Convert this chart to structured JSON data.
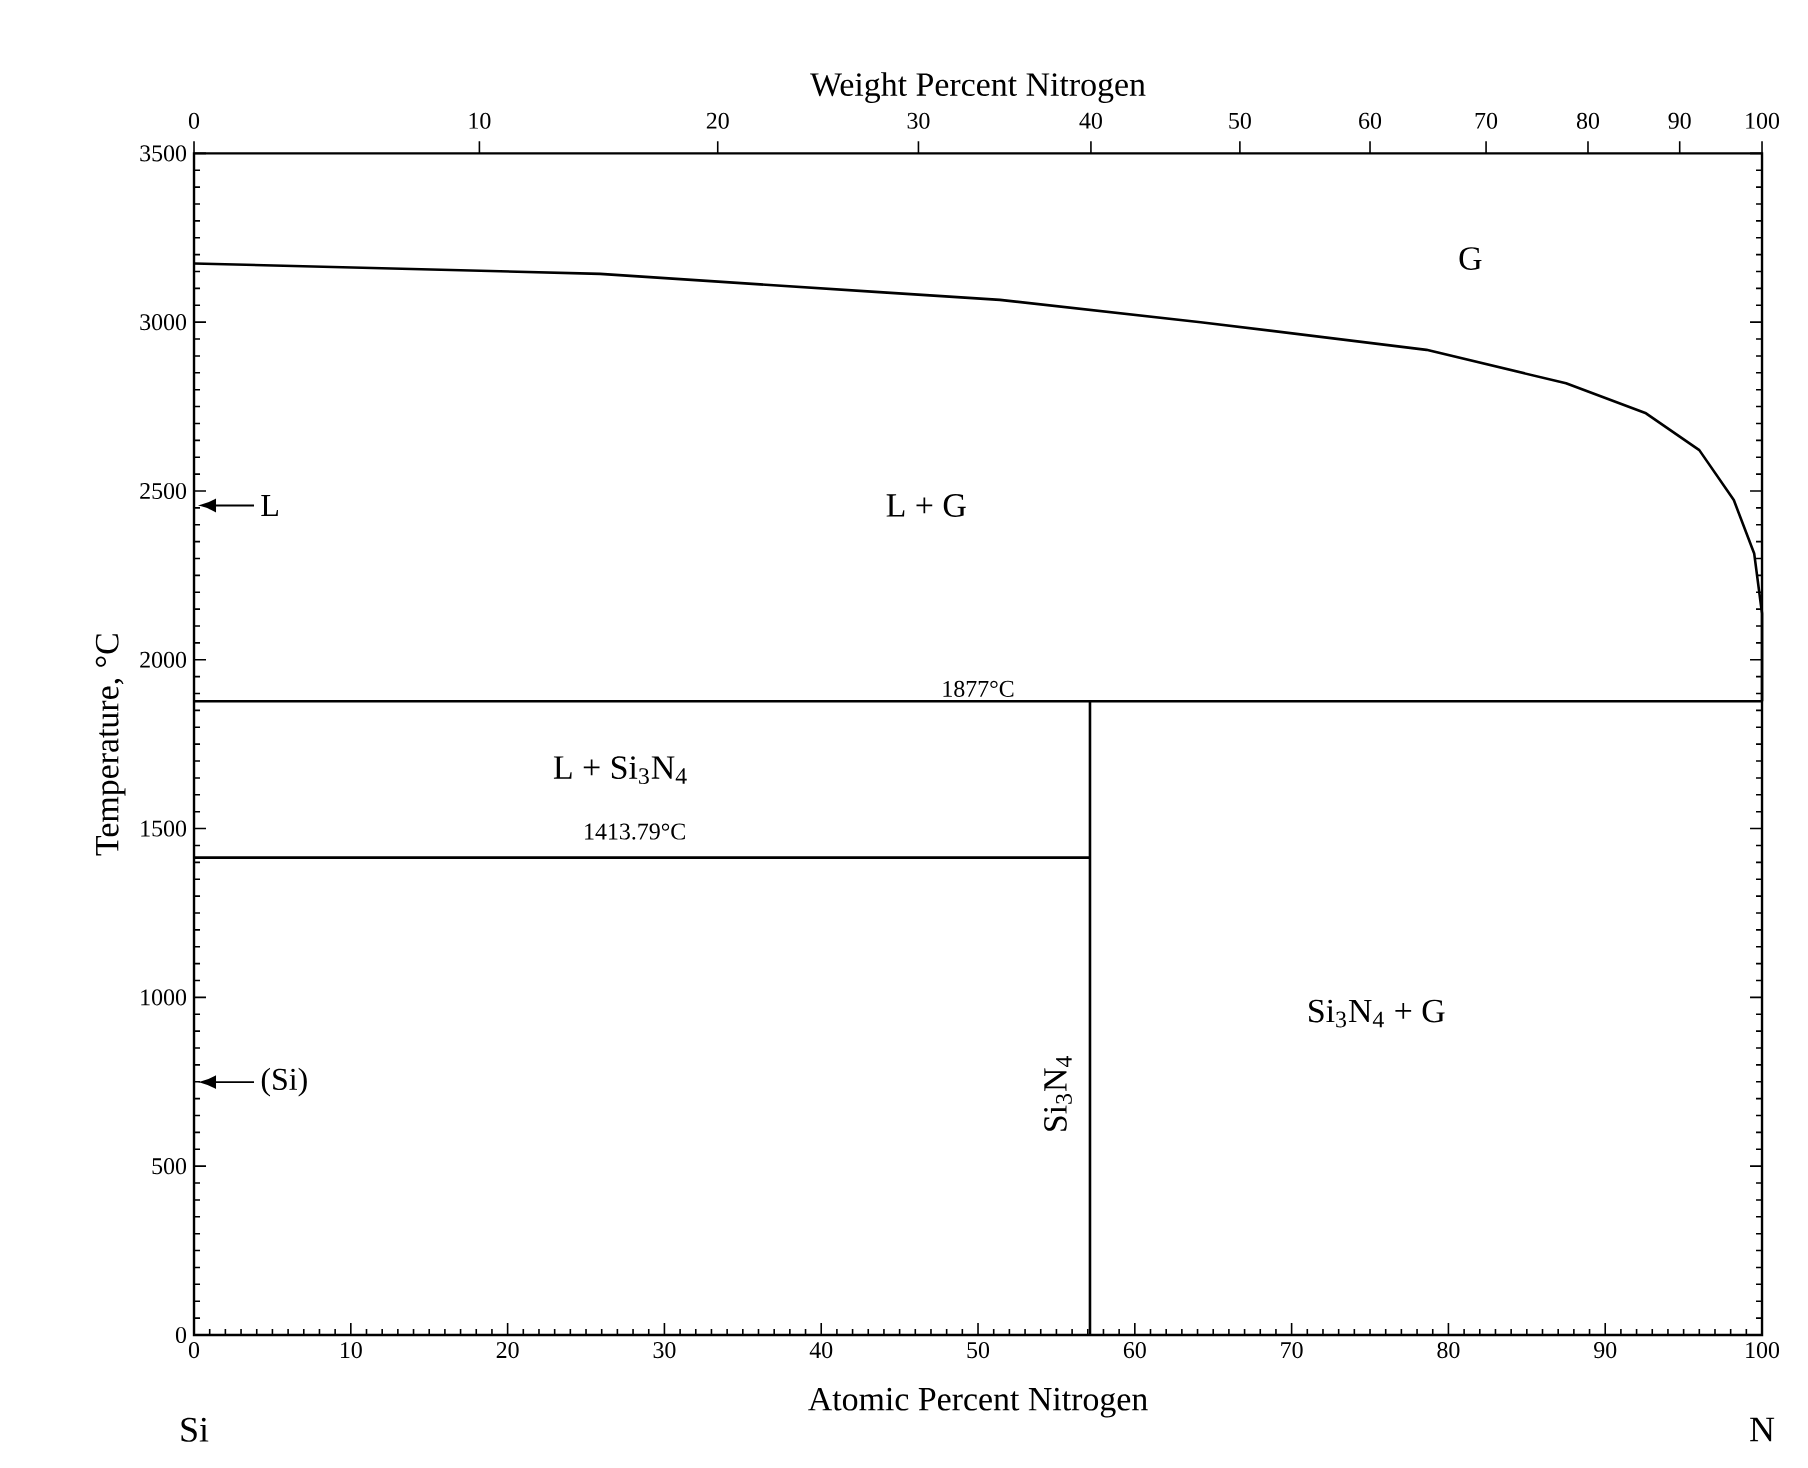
{
  "chart_data": {
    "type": "line",
    "xlabel": "Atomic Percent Nitrogen",
    "ylabel": "Temperature, °C",
    "xlim": [
      0,
      100
    ],
    "ylim": [
      0,
      3500
    ],
    "xticks": [
      0,
      10,
      20,
      30,
      40,
      50,
      60,
      70,
      80,
      90,
      100
    ],
    "yticks": [
      0,
      500,
      1000,
      1500,
      2000,
      2500,
      3000,
      3500
    ],
    "marker": "none",
    "line_style": "solid",
    "series": [
      {
        "color": "#000000",
        "x": [
          0,
          25.9,
          43.7,
          51.4,
          64.2,
          78.6,
          87.5,
          92.6,
          96.0,
          98.2,
          99.5,
          100,
          100
        ],
        "values": [
          3174,
          3143,
          3089,
          3066,
          3000,
          2918,
          2819,
          2730,
          2621,
          2473,
          2315,
          2137,
          1877
        ]
      },
      {
        "color": "#000000",
        "x": [
          0,
          57.14
        ],
        "values": [
          1414,
          1414
        ]
      },
      {
        "color": "#000000",
        "x": [
          57.14,
          57.14
        ],
        "values": [
          0,
          1877
        ]
      }
    ],
    "ref_lines": [
      {
        "axis": "y",
        "value": 1877,
        "label": "1877°C",
        "color": "#000000"
      }
    ],
    "annotations": [
      "G",
      "L + G",
      "L + Si$_{3}$N$_{4}$",
      "Si$_{3}$N$_{4}$ + G",
      "Si$_{3}$N$_{4}$",
      "1413.79°C",
      "L",
      "(Si)",
      "Si",
      "N",
      "0",
      "10",
      "20",
      "30",
      "40",
      "50",
      "60",
      "70",
      "80",
      "90",
      "100",
      "Weight Percent Nitrogen"
    ]
  }
}
